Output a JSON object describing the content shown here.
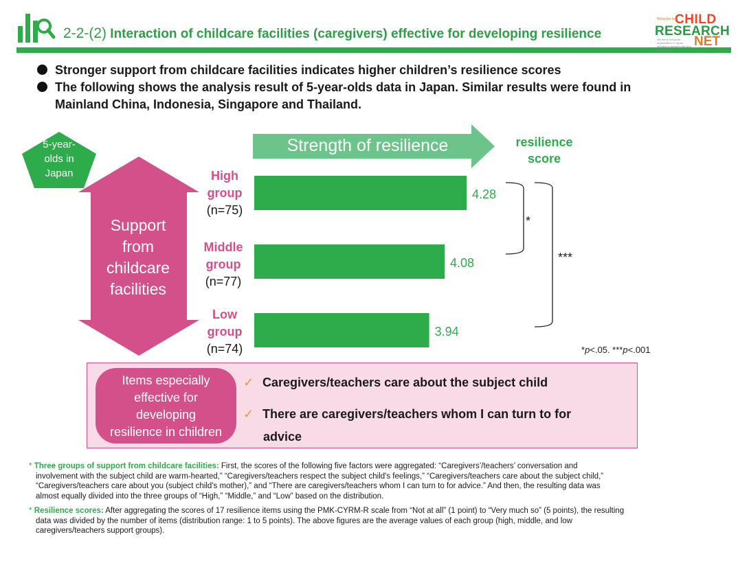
{
  "header": {
    "title_number": "2-2-(2)",
    "title_text": "Interaction of childcare facilities (caregivers) effective for developing resilience",
    "brand": {
      "small_top": "Welcome to",
      "word1": "CHILD",
      "word2": "RESEARCH",
      "word3": "NET",
      "tagline": "We are a non-profit organization in Japan devoted to thinking with and about children"
    },
    "colors": {
      "green": "#2eab4a",
      "pink": "#d4508a"
    }
  },
  "bullets": [
    "Stronger support from childcare facilities indicates higher children’s resilience scores",
    "The following shows the analysis result of 5-year-olds data in Japan. Similar results were found in",
    "Mainland China, Indonesia, Singapore and Thailand."
  ],
  "pentagon": {
    "line1": "5-year-",
    "line2": "olds in",
    "line3": "Japan"
  },
  "support_label": [
    "Support",
    "from",
    "childcare",
    "facilities"
  ],
  "strength_label": "Strength of resilience",
  "score_header": [
    "resilience",
    "score"
  ],
  "groups": [
    {
      "name1": "High",
      "name2": "group",
      "n": "(n=75)"
    },
    {
      "name1": "Middle",
      "name2": "group",
      "n": "(n=77)"
    },
    {
      "name1": "Low",
      "name2": "group",
      "n": "(n=74)"
    }
  ],
  "chart_data": {
    "type": "bar",
    "orientation": "horizontal",
    "categories": [
      "High group (n=75)",
      "Middle group (n=77)",
      "Low group (n=74)"
    ],
    "values": [
      4.28,
      4.08,
      3.94
    ],
    "value_labels": [
      "4.28",
      "4.08",
      "3.94"
    ],
    "bar_color": "#2eab4a",
    "significance": [
      {
        "between": [
          "High group (n=75)",
          "Middle group (n=77)"
        ],
        "label": "*"
      },
      {
        "between": [
          "High group (n=75)",
          "Low group (n=74)"
        ],
        "label": "***"
      }
    ]
  },
  "p_note": {
    "a": "*",
    "b": "p",
    "c": "<.05. ***",
    "d": "p",
    "e": "<.001"
  },
  "items_box": {
    "pill": [
      "Items especially",
      "effective for",
      "developing",
      "resilience in children"
    ],
    "tick": "✓",
    "item1": "Caregivers/teachers care about the subject child",
    "item2a": "There are caregivers/teachers whom I can turn to for",
    "item2b": "advice"
  },
  "footnotes": {
    "f1_star": "*",
    "f1_key": "Three groups of support from childcare facilities:",
    "f1_line1": "First, the scores of the following five factors were aggregated: “Caregivers’/teachers’ conversation and",
    "f1_line2": "involvement with the subject child are warm-hearted,” “Caregivers/teachers respect the subject child's feelings,” “Caregivers/teachers care about the subject child,”",
    "f1_line3": "“Caregivers/teachers care about you (subject child's mother),” and “There are caregivers/teachers whom I can turn to for advice.” And then, the resulting data was",
    "f1_line4": "almost equally divided into the three groups of “High,” “Middle,” and “Low” based on the distribution.",
    "f2_star": "*",
    "f2_key": "Resilience scores:",
    "f2_line1": "After aggregating the scores of 17 resilience items using the PMK-CYRM-R scale from “Not at all” (1 point) to “Very much so” (5 points), the resulting",
    "f2_line2": "data was divided by the number of items (distribution range: 1 to 5 points). The above figures are the average values of each group (high, middle, and low",
    "f2_line3": "caregivers/teachers support groups)."
  }
}
